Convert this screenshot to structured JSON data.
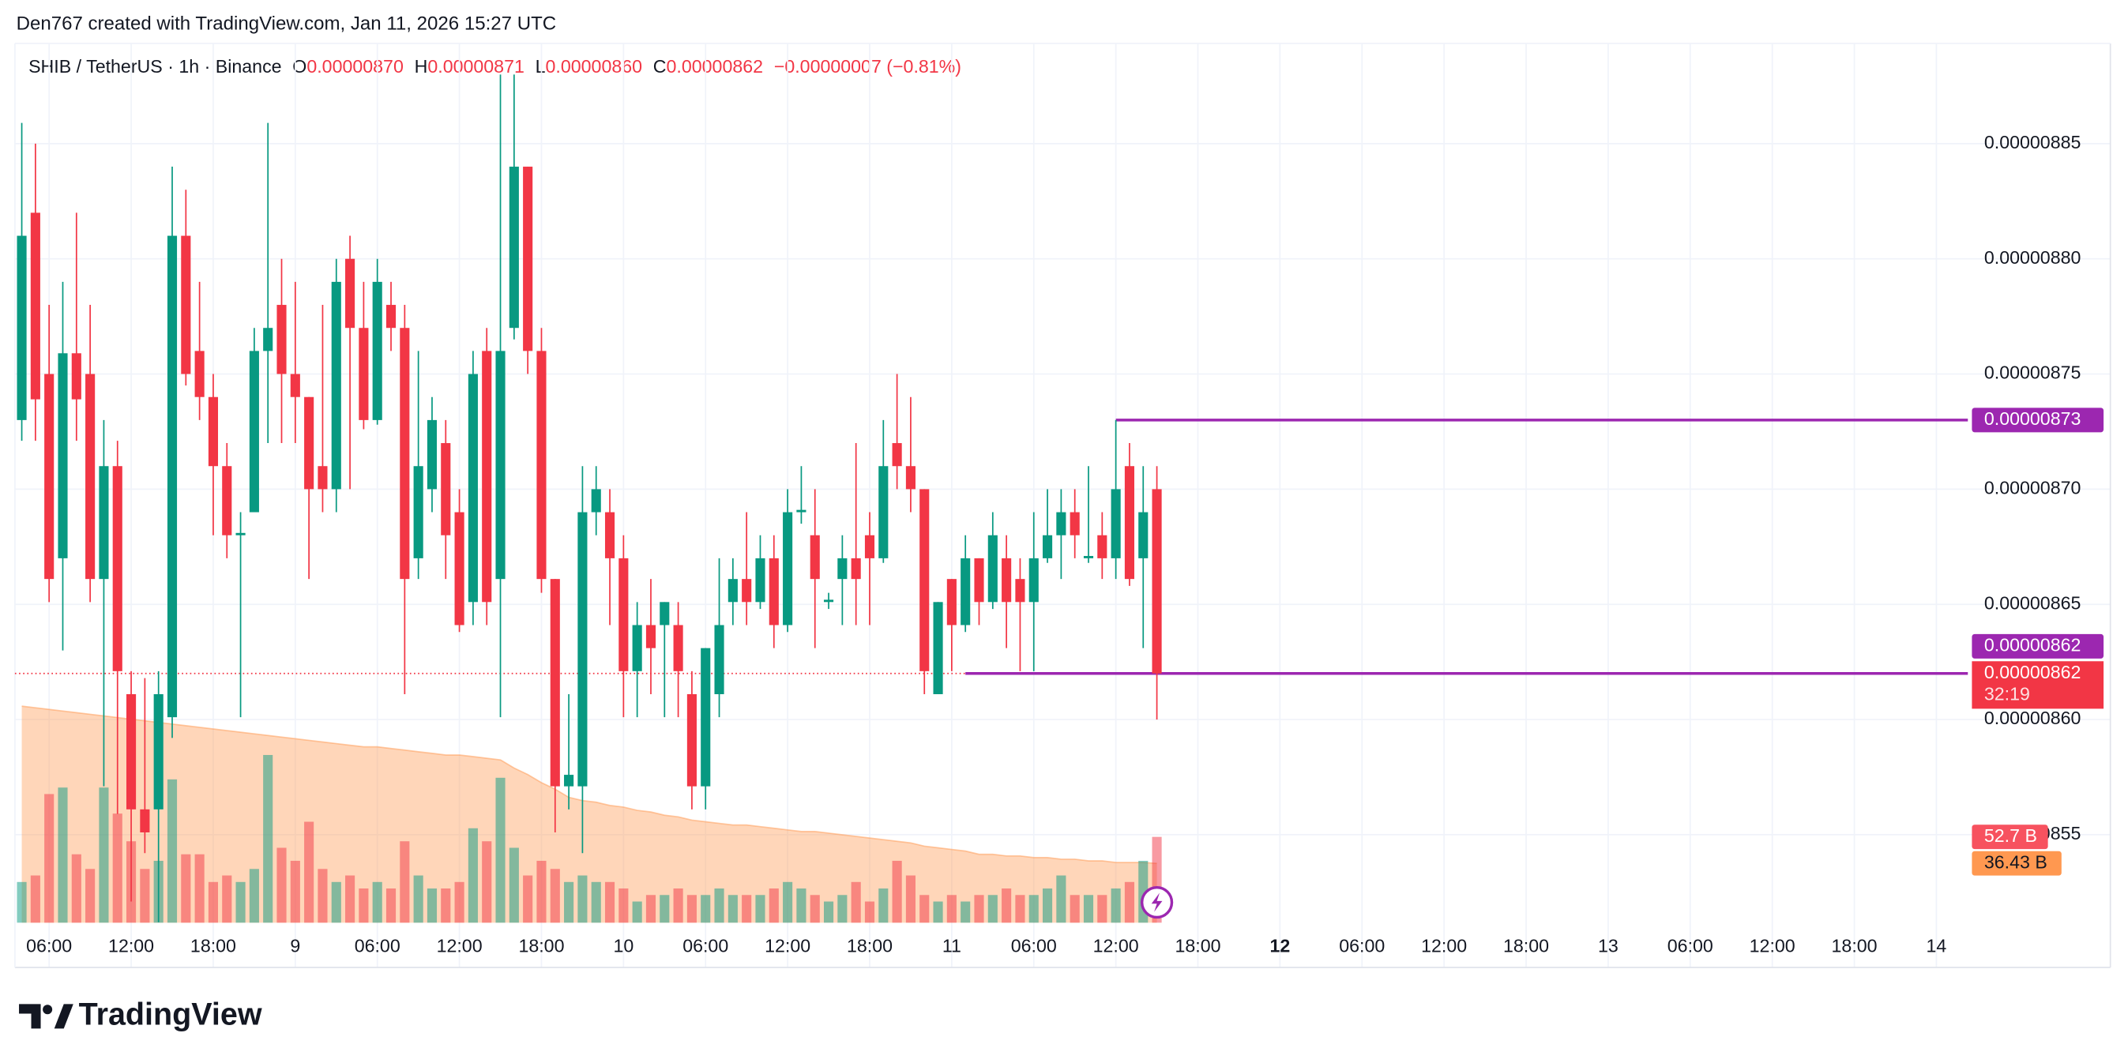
{
  "chart_data": {
    "type": "candlestick",
    "header": {
      "credit": "Den767 created with TradingView.com, Jan 11, 2026 15:27 UTC",
      "symbol": "SHIB / TetherUS · 1h · Binance",
      "o_label": "O",
      "open": "0.00000870",
      "h_label": "H",
      "high": "0.00000871",
      "l_label": "L",
      "low": "0.00000860",
      "c_label": "C",
      "close": "0.00000862",
      "change": "−0.00000007 (−0.81%)"
    },
    "brand": "TradingView",
    "up_color": "#089981",
    "down_color": "#f23645",
    "open": [
      8.73e-06,
      8.82e-06,
      8.75e-06,
      8.67e-06,
      8.759e-06,
      8.75e-06,
      8.661e-06,
      8.71e-06,
      8.611e-06,
      8.561e-06,
      8.561e-06,
      8.601e-06,
      8.81e-06,
      8.76e-06,
      8.74e-06,
      8.71e-06,
      8.68e-06,
      8.69e-06,
      8.76e-06,
      8.78e-06,
      8.75e-06,
      8.74e-06,
      8.71e-06,
      8.7e-06,
      8.8e-06,
      8.77e-06,
      8.73e-06,
      8.78e-06,
      8.77e-06,
      8.67e-06,
      8.7e-06,
      8.72e-06,
      8.69e-06,
      8.651e-06,
      8.76e-06,
      8.661e-06,
      8.77e-06,
      8.84e-06,
      8.76e-06,
      8.661e-06,
      8.571e-06,
      8.571e-06,
      8.69e-06,
      8.69e-06,
      8.67e-06,
      8.621e-06,
      8.641e-06,
      8.641e-06,
      8.641e-06,
      8.611e-06,
      8.571e-06,
      8.611e-06,
      8.651e-06,
      8.661e-06,
      8.651e-06,
      8.67e-06,
      8.641e-06,
      8.69e-06,
      8.68e-06,
      8.651e-06,
      8.661e-06,
      8.67e-06,
      8.68e-06,
      8.67e-06,
      8.72e-06,
      8.71e-06,
      8.7e-06,
      8.611e-06,
      8.661e-06,
      8.641e-06,
      8.67e-06,
      8.651e-06,
      8.67e-06,
      8.661e-06,
      8.651e-06,
      8.67e-06,
      8.68e-06,
      8.69e-06,
      8.67e-06,
      8.68e-06,
      8.67e-06,
      8.71e-06,
      8.67e-06,
      8.7e-06
    ],
    "high": [
      8.859e-06,
      8.85e-06,
      8.78e-06,
      8.79e-06,
      8.82e-06,
      8.78e-06,
      8.73e-06,
      8.721e-06,
      8.621e-06,
      8.618e-06,
      8.621e-06,
      8.84e-06,
      8.83e-06,
      8.79e-06,
      8.75e-06,
      8.72e-06,
      8.69e-06,
      8.77e-06,
      8.859e-06,
      8.8e-06,
      8.79e-06,
      8.74e-06,
      8.78e-06,
      8.8e-06,
      8.81e-06,
      8.79e-06,
      8.8e-06,
      8.79e-06,
      8.78e-06,
      8.76e-06,
      8.74e-06,
      8.73e-06,
      8.7e-06,
      8.76e-06,
      8.77e-06,
      8.88e-06,
      8.88e-06,
      8.84e-06,
      8.77e-06,
      8.661e-06,
      8.611e-06,
      8.71e-06,
      8.71e-06,
      8.7e-06,
      8.68e-06,
      8.651e-06,
      8.661e-06,
      8.651e-06,
      8.651e-06,
      8.621e-06,
      8.631e-06,
      8.67e-06,
      8.67e-06,
      8.69e-06,
      8.68e-06,
      8.68e-06,
      8.7e-06,
      8.71e-06,
      8.7e-06,
      8.655e-06,
      8.68e-06,
      8.72e-06,
      8.69e-06,
      8.73e-06,
      8.75e-06,
      8.74e-06,
      8.7e-06,
      8.651e-06,
      8.661e-06,
      8.68e-06,
      8.67e-06,
      8.69e-06,
      8.68e-06,
      8.67e-06,
      8.69e-06,
      8.7e-06,
      8.7e-06,
      8.7e-06,
      8.71e-06,
      8.69e-06,
      8.73e-06,
      8.72e-06,
      8.71e-06,
      8.71e-06
    ],
    "low": [
      8.721e-06,
      8.721e-06,
      8.651e-06,
      8.63e-06,
      8.721e-06,
      8.651e-06,
      8.571e-06,
      8.559e-06,
      8.521e-06,
      8.542e-06,
      8.512e-06,
      8.592e-06,
      8.745e-06,
      8.73e-06,
      8.68e-06,
      8.67e-06,
      8.601e-06,
      8.69e-06,
      8.72e-06,
      8.72e-06,
      8.72e-06,
      8.661e-06,
      8.69e-06,
      8.69e-06,
      8.7e-06,
      8.726e-06,
      8.728e-06,
      8.76e-06,
      8.611e-06,
      8.661e-06,
      8.69e-06,
      8.661e-06,
      8.638e-06,
      8.641e-06,
      8.641e-06,
      8.601e-06,
      8.765e-06,
      8.75e-06,
      8.655e-06,
      8.551e-06,
      8.561e-06,
      8.542e-06,
      8.68e-06,
      8.641e-06,
      8.601e-06,
      8.601e-06,
      8.611e-06,
      8.601e-06,
      8.601e-06,
      8.561e-06,
      8.561e-06,
      8.601e-06,
      8.641e-06,
      8.641e-06,
      8.648e-06,
      8.631e-06,
      8.638e-06,
      8.685e-06,
      8.631e-06,
      8.648e-06,
      8.641e-06,
      8.641e-06,
      8.641e-06,
      8.668e-06,
      8.7e-06,
      8.69e-06,
      8.611e-06,
      8.611e-06,
      8.621e-06,
      8.638e-06,
      8.641e-06,
      8.648e-06,
      8.631e-06,
      8.621e-06,
      8.621e-06,
      8.668e-06,
      8.661e-06,
      8.67e-06,
      8.668e-06,
      8.661e-06,
      8.661e-06,
      8.658e-06,
      8.631e-06,
      8.6e-06
    ],
    "close": [
      8.81e-06,
      8.739e-06,
      8.661e-06,
      8.759e-06,
      8.739e-06,
      8.661e-06,
      8.71e-06,
      8.621e-06,
      8.561e-06,
      8.551e-06,
      8.611e-06,
      8.81e-06,
      8.75e-06,
      8.74e-06,
      8.71e-06,
      8.68e-06,
      8.681e-06,
      8.76e-06,
      8.77e-06,
      8.75e-06,
      8.74e-06,
      8.7e-06,
      8.7e-06,
      8.79e-06,
      8.77e-06,
      8.73e-06,
      8.79e-06,
      8.77e-06,
      8.661e-06,
      8.71e-06,
      8.73e-06,
      8.68e-06,
      8.641e-06,
      8.75e-06,
      8.651e-06,
      8.76e-06,
      8.84e-06,
      8.76e-06,
      8.661e-06,
      8.571e-06,
      8.576e-06,
      8.69e-06,
      8.7e-06,
      8.67e-06,
      8.621e-06,
      8.641e-06,
      8.631e-06,
      8.651e-06,
      8.621e-06,
      8.571e-06,
      8.631e-06,
      8.641e-06,
      8.661e-06,
      8.651e-06,
      8.67e-06,
      8.641e-06,
      8.69e-06,
      8.691e-06,
      8.661e-06,
      8.652e-06,
      8.67e-06,
      8.661e-06,
      8.67e-06,
      8.71e-06,
      8.71e-06,
      8.7e-06,
      8.621e-06,
      8.651e-06,
      8.641e-06,
      8.67e-06,
      8.651e-06,
      8.68e-06,
      8.651e-06,
      8.651e-06,
      8.67e-06,
      8.68e-06,
      8.69e-06,
      8.68e-06,
      8.671e-06,
      8.67e-06,
      8.7e-06,
      8.661e-06,
      8.69e-06,
      8.62e-06
    ],
    "volume": [
      25,
      29,
      79,
      83,
      42,
      33,
      83,
      67,
      50,
      33,
      38,
      88,
      42,
      42,
      25,
      29,
      25,
      33,
      103,
      46,
      38,
      62,
      33,
      25,
      29,
      21,
      25,
      21,
      50,
      29,
      21,
      21,
      25,
      58,
      50,
      89,
      46,
      29,
      38,
      33,
      25,
      29,
      25,
      25,
      21,
      13,
      17,
      17,
      21,
      17,
      17,
      21,
      17,
      17,
      17,
      21,
      25,
      21,
      17,
      13,
      17,
      25,
      13,
      21,
      38,
      29,
      17,
      13,
      17,
      13,
      17,
      17,
      21,
      17,
      17,
      21,
      29,
      17,
      17,
      17,
      21,
      25,
      38,
      52.7
    ],
    "volume_value_labels": {
      "83": "52.7 B"
    },
    "volume_ma": [
      133,
      132,
      131,
      130,
      129,
      128,
      127,
      126,
      125,
      124,
      123,
      122,
      121,
      120,
      119,
      118,
      117,
      116,
      115,
      114,
      113,
      112,
      111,
      110,
      109,
      108,
      108,
      107,
      106,
      105,
      104,
      103,
      103,
      102,
      101,
      100,
      95,
      91,
      86,
      82,
      77,
      75,
      74,
      72,
      71,
      69,
      68,
      66,
      65,
      63,
      62,
      61,
      60,
      60,
      59,
      58,
      57,
      56,
      56,
      55,
      54,
      53,
      52,
      51,
      50,
      49,
      47,
      46,
      45,
      44,
      42,
      42,
      41,
      41,
      40,
      40,
      39,
      39,
      38,
      38,
      37,
      37,
      37,
      36.43
    ],
    "volume_ma_label": "36.43 B",
    "volume_ma_color": "#ff9850",
    "vlim": [
      0,
      540
    ],
    "xlim": [
      -0.5,
      142.3
    ],
    "xticks": [
      {
        "value": 2,
        "label": "06:00"
      },
      {
        "value": 8,
        "label": "12:00"
      },
      {
        "value": 14,
        "label": "18:00"
      },
      {
        "value": 20,
        "label": "9"
      },
      {
        "value": 26,
        "label": "06:00"
      },
      {
        "value": 32,
        "label": "12:00"
      },
      {
        "value": 38,
        "label": "18:00"
      },
      {
        "value": 44,
        "label": "10"
      },
      {
        "value": 50,
        "label": "06:00"
      },
      {
        "value": 56,
        "label": "12:00"
      },
      {
        "value": 62,
        "label": "18:00"
      },
      {
        "value": 68,
        "label": "11"
      },
      {
        "value": 74,
        "label": "06:00"
      },
      {
        "value": 80,
        "label": "12:00"
      },
      {
        "value": 86,
        "label": "18:00"
      },
      {
        "value": 92,
        "label": "12",
        "bold": true
      },
      {
        "value": 98,
        "label": "06:00"
      },
      {
        "value": 104,
        "label": "12:00"
      },
      {
        "value": 110,
        "label": "18:00"
      },
      {
        "value": 116,
        "label": "13"
      },
      {
        "value": 122,
        "label": "06:00"
      },
      {
        "value": 128,
        "label": "12:00"
      },
      {
        "value": 134,
        "label": "18:00"
      },
      {
        "value": 140,
        "label": "14"
      }
    ],
    "ylim": [
      8.5118e-06,
      8.8935e-06
    ],
    "yticks": [
      {
        "value": 8.55e-06,
        "label": "0.00000855"
      },
      {
        "value": 8.6e-06,
        "label": "0.00000860"
      },
      {
        "value": 8.65e-06,
        "label": "0.00000865"
      },
      {
        "value": 8.7e-06,
        "label": "0.00000870"
      },
      {
        "value": 8.75e-06,
        "label": "0.00000875"
      },
      {
        "value": 8.8e-06,
        "label": "0.00000880"
      },
      {
        "value": 8.85e-06,
        "label": "0.00000885"
      }
    ],
    "grid": true,
    "levels": [
      {
        "value": 8.73e-06,
        "label": "0.00000873",
        "start": 80,
        "color": "#9c27b0"
      },
      {
        "value": 8.62e-06,
        "label": "0.00000862",
        "start": 69,
        "color": "#9c27b0"
      }
    ],
    "last_price": {
      "value": 8.62e-06,
      "label": "0.00000862",
      "countdown": "32:19"
    }
  }
}
